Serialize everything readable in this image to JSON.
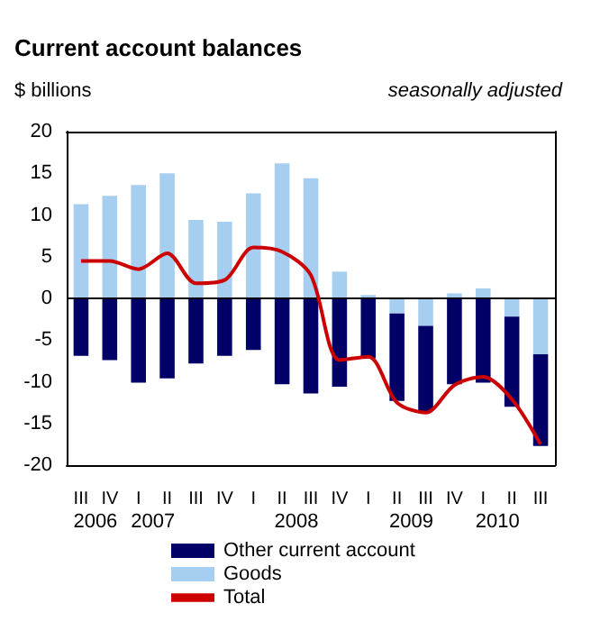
{
  "chart_data": {
    "type": "bar",
    "title": "Current account balances",
    "ylabel": "$ billions",
    "subtitle": "seasonally adjusted",
    "categories": [
      "III",
      "IV",
      "I",
      "II",
      "III",
      "IV",
      "I",
      "II",
      "III",
      "IV",
      "I",
      "II",
      "III",
      "IV",
      "I",
      "II",
      "III"
    ],
    "annotations": [
      "2006",
      "2007",
      "2008",
      "2009",
      "2010"
    ],
    "stacked": true,
    "series": [
      {
        "name": "Goods",
        "color": "#a6cef0",
        "values": [
          11.3,
          12.3,
          13.6,
          15.0,
          9.4,
          9.2,
          12.6,
          16.2,
          14.4,
          3.2,
          0.4,
          -1.8,
          -3.3,
          0.6,
          1.2,
          -2.2,
          -6.7
        ]
      },
      {
        "name": "Other current account",
        "color": "#000066",
        "values": [
          -6.9,
          -7.4,
          -10.1,
          -9.6,
          -7.8,
          -6.9,
          -6.2,
          -10.3,
          -11.4,
          -10.6,
          -7.2,
          -10.5,
          -10.2,
          -10.3,
          -10.1,
          -10.8,
          -11.0
        ]
      },
      {
        "name": "Total",
        "type": "line",
        "color": "#cc0000",
        "values": [
          4.5,
          4.5,
          3.5,
          5.4,
          1.8,
          2.2,
          6.1,
          5.6,
          2.8,
          -7.4,
          -7.0,
          -12.5,
          -13.7,
          -10.4,
          -9.4,
          -12.1,
          -17.5
        ]
      }
    ],
    "ylim": [
      -20,
      20
    ],
    "yticks": [
      -20,
      -15,
      -10,
      -5,
      0,
      5,
      10,
      15,
      20
    ],
    "ref_lines": [
      {
        "axis": "y",
        "value": 0,
        "color": "#000000"
      }
    ],
    "grid": false,
    "legend": "bottom",
    "marker": "none"
  }
}
